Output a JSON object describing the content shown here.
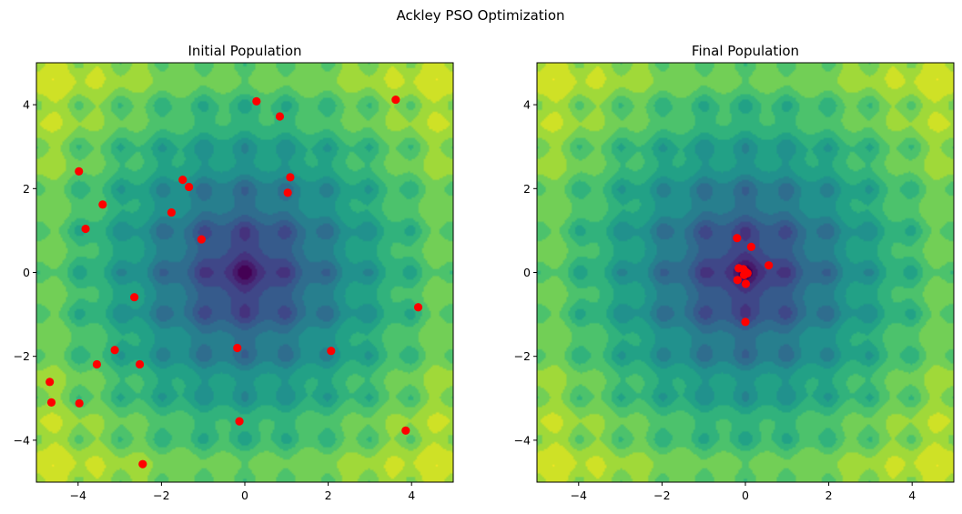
{
  "figure": {
    "suptitle": "Ackley PSO Optimization"
  },
  "colors": {
    "marker": "#ff0000",
    "colormap": "viridis",
    "axis": "#000000",
    "background": "#ffffff"
  },
  "chart_data": [
    {
      "type": "scatter",
      "background": "contour-fill of Ackley function (viridis)",
      "title": "Initial Population",
      "xlabel": "",
      "ylabel": "",
      "xlim": [
        -5,
        5
      ],
      "ylim": [
        -5,
        5
      ],
      "xticks": [
        -4,
        -2,
        0,
        2,
        4
      ],
      "yticks": [
        -4,
        -2,
        0,
        2,
        4
      ],
      "xtick_labels": [
        "−4",
        "−2",
        "0",
        "2",
        "4"
      ],
      "ytick_labels": [
        "−4",
        "−2",
        "0",
        "2",
        "4"
      ],
      "grid": false,
      "points": [
        {
          "x": 0.28,
          "y": 4.08
        },
        {
          "x": 0.84,
          "y": 3.72
        },
        {
          "x": 3.62,
          "y": 4.12
        },
        {
          "x": -3.98,
          "y": 2.41
        },
        {
          "x": -1.49,
          "y": 2.21
        },
        {
          "x": -1.34,
          "y": 2.04
        },
        {
          "x": 1.09,
          "y": 2.27
        },
        {
          "x": 1.03,
          "y": 1.9
        },
        {
          "x": -3.41,
          "y": 1.62
        },
        {
          "x": -1.76,
          "y": 1.43
        },
        {
          "x": -3.82,
          "y": 1.04
        },
        {
          "x": -1.04,
          "y": 0.79
        },
        {
          "x": -2.65,
          "y": -0.59
        },
        {
          "x": 4.16,
          "y": -0.83
        },
        {
          "x": -3.12,
          "y": -1.85
        },
        {
          "x": -0.18,
          "y": -1.8
        },
        {
          "x": 2.07,
          "y": -1.87
        },
        {
          "x": -3.55,
          "y": -2.19
        },
        {
          "x": -2.52,
          "y": -2.19
        },
        {
          "x": -4.68,
          "y": -2.61
        },
        {
          "x": -4.64,
          "y": -3.1
        },
        {
          "x": -3.97,
          "y": -3.12
        },
        {
          "x": -0.13,
          "y": -3.55
        },
        {
          "x": 3.86,
          "y": -3.77
        },
        {
          "x": -2.45,
          "y": -4.57
        }
      ]
    },
    {
      "type": "scatter",
      "background": "contour-fill of Ackley function (viridis)",
      "title": "Final Population",
      "xlabel": "",
      "ylabel": "",
      "xlim": [
        -5,
        5
      ],
      "ylim": [
        -5,
        5
      ],
      "xticks": [
        -4,
        -2,
        0,
        2,
        4
      ],
      "yticks": [
        -4,
        -2,
        0,
        2,
        4
      ],
      "xtick_labels": [
        "−4",
        "−2",
        "0",
        "2",
        "4"
      ],
      "ytick_labels": [
        "−4",
        "−2",
        "0",
        "2",
        "4"
      ],
      "grid": false,
      "points": [
        {
          "x": -0.2,
          "y": 0.82
        },
        {
          "x": 0.14,
          "y": 0.61
        },
        {
          "x": 0.56,
          "y": 0.17
        },
        {
          "x": -0.16,
          "y": 0.1
        },
        {
          "x": -0.05,
          "y": 0.08
        },
        {
          "x": 0.0,
          "y": 0.02
        },
        {
          "x": 0.05,
          "y": -0.02
        },
        {
          "x": -0.03,
          "y": -0.06
        },
        {
          "x": -0.19,
          "y": -0.18
        },
        {
          "x": 0.01,
          "y": -0.27
        },
        {
          "x": 0.0,
          "y": -1.18
        }
      ]
    }
  ]
}
